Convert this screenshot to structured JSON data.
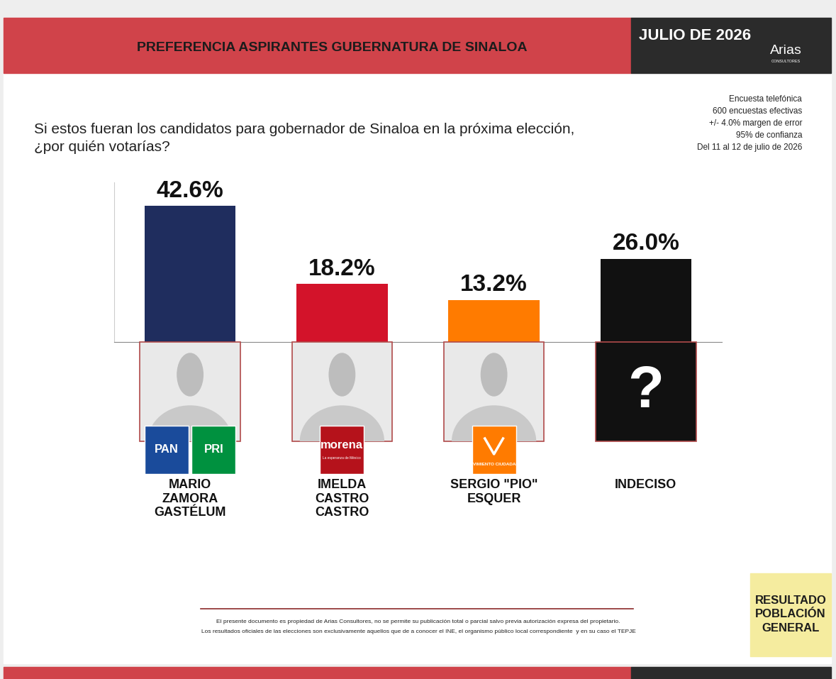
{
  "chart_data": {
    "type": "bar",
    "title": "PREFERENCIA ASPIRANTES GUBERNATURA DE SINALOA",
    "subtitle": "Si estos fueran los candidatos para gobernador de Sinaloa en la próxima elección,\n¿por quién votarías?",
    "categories": [
      "MARIO\nZAMORA\nGASTÉLUM",
      "IMELDA\nCASTRO\nCASTRO",
      "SERGIO \"PIO\"\nESQUER",
      "INDECISO"
    ],
    "values": [
      42.6,
      18.2,
      13.2,
      26.0
    ],
    "value_labels": [
      "42.6%",
      "18.2%",
      "13.2%",
      "26.0%"
    ],
    "colors": [
      "#1f2d5e",
      "#d3132a",
      "#ff7b00",
      "#111111"
    ],
    "data_labels": true,
    "ylim": [
      0,
      50
    ],
    "yticks": [],
    "tick_labels": "x",
    "grid": false
  },
  "header": {
    "date": "JULIO DE 2026",
    "brand": "Arias",
    "brand_sub": "CONSULTORES"
  },
  "survey_note": [
    "Encuesta telefónica",
    "600 encuestas efectivas",
    "+/- 4.0% margen de error",
    "95% de confianza",
    "Del 11 al 12 de julio de 2026"
  ],
  "party_logos": [
    [
      {
        "text": "PAN",
        "color": "#1a4b9b"
      },
      {
        "text": "PRI",
        "color": "#00913f"
      }
    ],
    [
      {
        "text": "morena",
        "sub": "La esperanza de México",
        "color": "#b5121b"
      }
    ],
    [
      {
        "text": "MOVIMIENTO CIUDADANO",
        "color": "#ff7b00"
      }
    ],
    []
  ],
  "undecided_icon": "?",
  "footer": [
    "El presente documento es propiedad de Arias Consultores, no se permite su publicación total o parcial salvo previa autorización expresa del propietario.",
    "Los resultados oficiales de las elecciones son exclusivamente aquellos que de a conocer el INE, el organismo público local correspondiente  y en su caso el TEPJE"
  ],
  "badge": "RESULTADO\nPOBLACIÓN\nGENERAL"
}
